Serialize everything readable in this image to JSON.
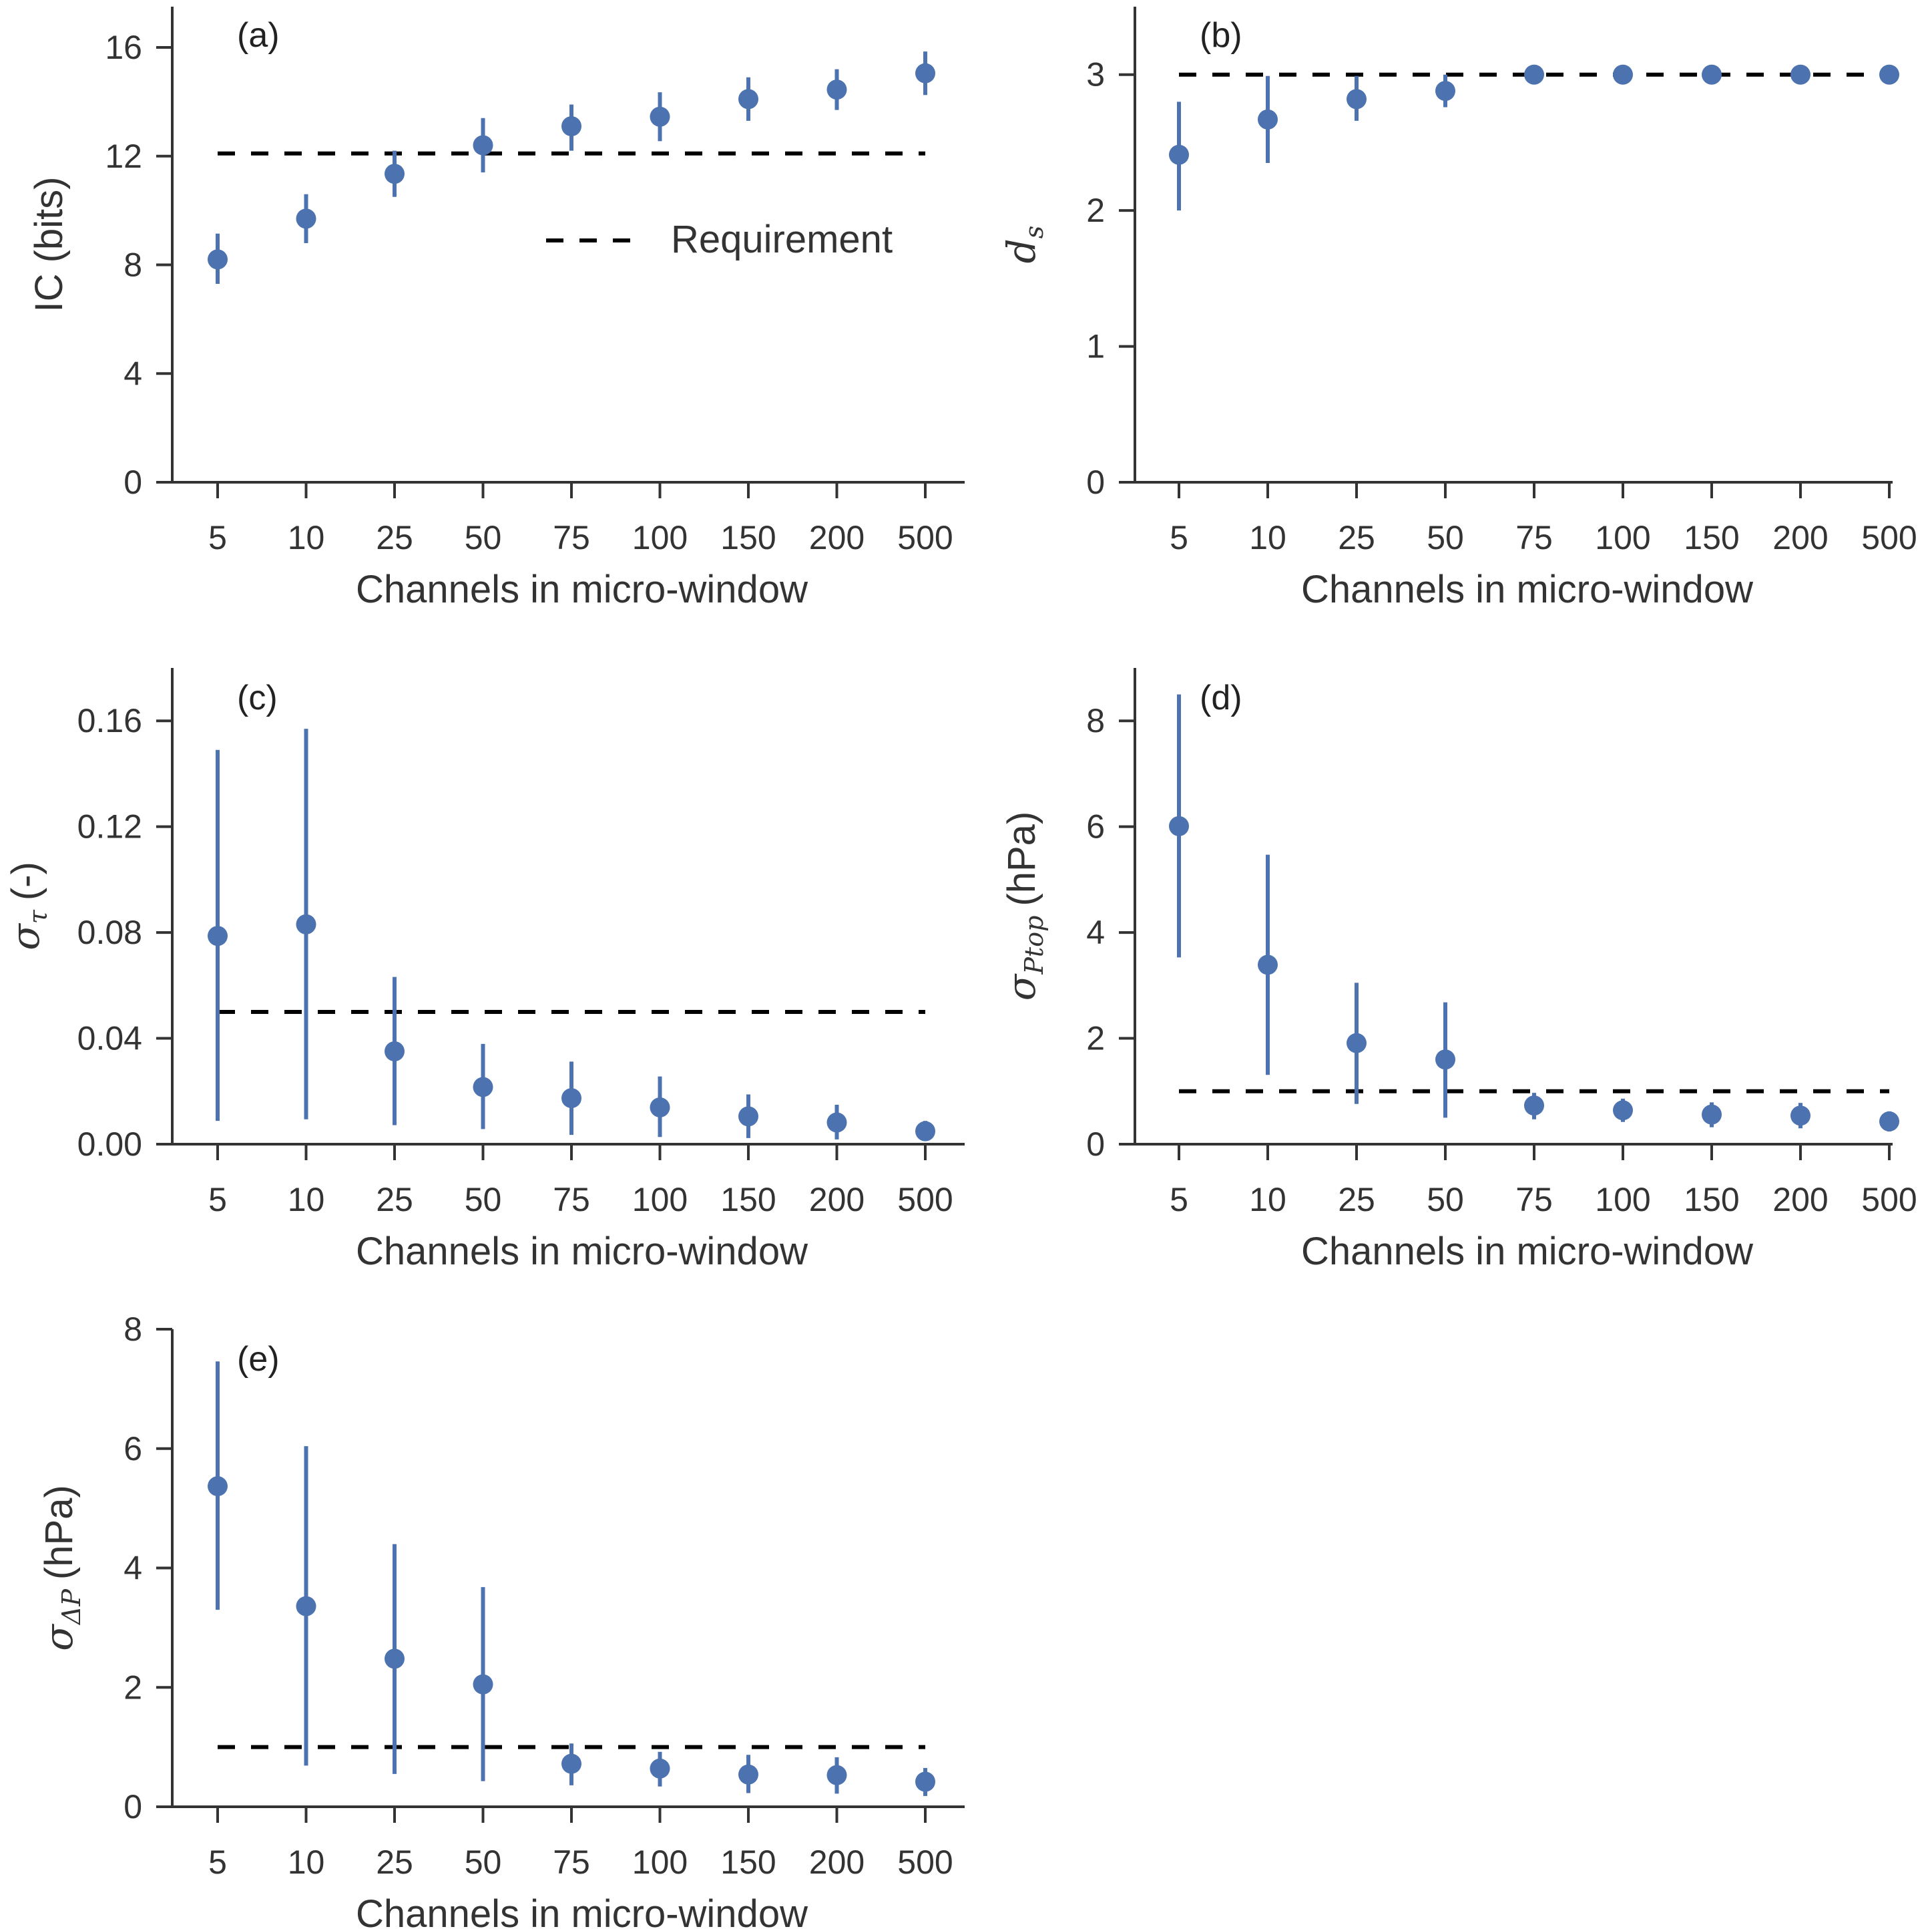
{
  "colors": {
    "series": "#4c72b0",
    "requirement": "#000000",
    "axis": "#333333"
  },
  "legend": {
    "requirement_label": "Requirement"
  },
  "chart_data": [
    {
      "id": "a",
      "type": "scatter",
      "panel_label": "(a)",
      "xlabel": "Channels in micro-window",
      "ylabel": "IC (bits)",
      "categories": [
        "5",
        "10",
        "25",
        "50",
        "75",
        "100",
        "150",
        "200",
        "500"
      ],
      "values": [
        8.2,
        9.7,
        11.35,
        12.4,
        13.1,
        13.45,
        14.1,
        14.45,
        15.05
      ],
      "err_upper": [
        9.15,
        10.6,
        12.2,
        13.4,
        13.9,
        14.35,
        14.9,
        15.2,
        15.85
      ],
      "err_lower": [
        7.3,
        8.8,
        10.5,
        11.4,
        12.2,
        12.55,
        13.3,
        13.7,
        14.25
      ],
      "requirement": 12.1,
      "ylim": [
        0,
        17.5
      ],
      "yticks": [
        0,
        4,
        8,
        12,
        16
      ],
      "ytick_labels": [
        "0",
        "4",
        "8",
        "12",
        "16"
      ],
      "legend": "right-middle"
    },
    {
      "id": "b",
      "type": "scatter",
      "panel_label": "(b)",
      "xlabel": "Channels in micro-window",
      "ylabel": "d_s",
      "categories": [
        "5",
        "10",
        "25",
        "50",
        "75",
        "100",
        "150",
        "200",
        "500"
      ],
      "values": [
        2.41,
        2.67,
        2.82,
        2.88,
        3.0,
        3.0,
        3.0,
        3.0,
        3.0
      ],
      "err_upper": [
        2.8,
        2.99,
        2.99,
        3.0,
        3.0,
        3.0,
        3.0,
        3.0,
        3.0
      ],
      "err_lower": [
        2.0,
        2.35,
        2.66,
        2.76,
        3.0,
        3.0,
        3.0,
        3.0,
        3.0
      ],
      "requirement": 3.0,
      "ylim": [
        0,
        3.5
      ],
      "yticks": [
        0,
        1,
        2,
        3
      ],
      "ytick_labels": [
        "0",
        "1",
        "2",
        "3"
      ]
    },
    {
      "id": "c",
      "type": "scatter",
      "panel_label": "(c)",
      "xlabel": "Channels in micro-window",
      "ylabel": "σ_τ (-)",
      "categories": [
        "5",
        "10",
        "25",
        "50",
        "75",
        "100",
        "150",
        "200",
        "500"
      ],
      "values": [
        0.0787,
        0.0831,
        0.0351,
        0.0216,
        0.0174,
        0.0139,
        0.0105,
        0.0082,
        0.0049
      ],
      "err_upper": [
        0.149,
        0.157,
        0.0632,
        0.0379,
        0.0312,
        0.0256,
        0.0188,
        0.0149,
        0.0088
      ],
      "err_lower": [
        0.0088,
        0.0094,
        0.0072,
        0.0057,
        0.0035,
        0.0027,
        0.0023,
        0.0018,
        0.0015
      ],
      "requirement": 0.05,
      "ylim": [
        0,
        0.18
      ],
      "yticks": [
        0,
        0.04,
        0.08,
        0.12,
        0.16
      ],
      "ytick_labels": [
        "0.00",
        "0.04",
        "0.08",
        "0.12",
        "0.16"
      ]
    },
    {
      "id": "d",
      "type": "scatter",
      "panel_label": "(d)",
      "xlabel": "Channels in micro-window",
      "ylabel": "σ_Ptop (hPa)",
      "categories": [
        "5",
        "10",
        "25",
        "50",
        "75",
        "100",
        "150",
        "200",
        "500"
      ],
      "values": [
        6.01,
        3.39,
        1.91,
        1.6,
        0.73,
        0.64,
        0.56,
        0.54,
        0.43
      ],
      "err_upper": [
        8.5,
        5.47,
        3.05,
        2.68,
        0.97,
        0.86,
        0.79,
        0.78,
        0.62
      ],
      "err_lower": [
        3.53,
        1.31,
        0.76,
        0.5,
        0.47,
        0.42,
        0.32,
        0.3,
        0.24
      ],
      "requirement": 1.0,
      "ylim": [
        0,
        9
      ],
      "yticks": [
        0,
        2,
        4,
        6,
        8
      ],
      "ytick_labels": [
        "0",
        "2",
        "4",
        "6",
        "8"
      ]
    },
    {
      "id": "e",
      "type": "scatter",
      "panel_label": "(e)",
      "xlabel": "Channels in micro-window",
      "ylabel": "σ_ΔP (hPa)",
      "categories": [
        "5",
        "10",
        "25",
        "50",
        "75",
        "100",
        "150",
        "200",
        "500"
      ],
      "values": [
        5.37,
        3.36,
        2.48,
        2.05,
        0.72,
        0.64,
        0.54,
        0.53,
        0.42
      ],
      "err_upper": [
        7.46,
        6.04,
        4.4,
        3.68,
        1.06,
        0.92,
        0.87,
        0.83,
        0.65
      ],
      "err_lower": [
        3.3,
        0.69,
        0.55,
        0.43,
        0.36,
        0.34,
        0.23,
        0.22,
        0.18
      ],
      "requirement": 1.0,
      "ylim": [
        0,
        8
      ],
      "yticks": [
        0,
        2,
        4,
        6,
        8
      ],
      "ytick_labels": [
        "0",
        "2",
        "4",
        "6",
        "8"
      ]
    }
  ]
}
